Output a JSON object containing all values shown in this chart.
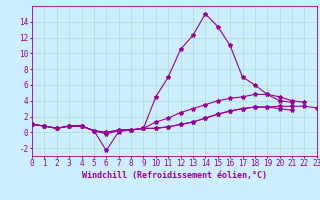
{
  "x": [
    0,
    1,
    2,
    3,
    4,
    5,
    6,
    7,
    8,
    9,
    10,
    11,
    12,
    13,
    14,
    15,
    16,
    17,
    18,
    19,
    20,
    21,
    22,
    23
  ],
  "line1": [
    1.0,
    0.8,
    0.5,
    0.8,
    0.8,
    0.2,
    -0.2,
    0.2,
    0.3,
    0.5,
    4.5,
    7.0,
    10.5,
    12.3,
    15.0,
    13.4,
    11.0,
    7.0,
    6.0,
    4.8,
    4.0,
    3.8,
    null,
    null
  ],
  "line2": [
    1.0,
    0.8,
    0.5,
    0.8,
    0.8,
    0.2,
    -2.3,
    0.1,
    0.3,
    0.5,
    1.3,
    1.8,
    2.5,
    3.0,
    3.5,
    4.0,
    4.3,
    4.5,
    4.8,
    4.8,
    4.5,
    4.0,
    3.8,
    null
  ],
  "line3": [
    1.0,
    0.8,
    0.5,
    0.8,
    0.8,
    0.2,
    0.0,
    0.3,
    0.3,
    0.5,
    0.5,
    0.7,
    1.0,
    1.3,
    1.8,
    2.3,
    2.7,
    3.0,
    3.2,
    3.2,
    3.3,
    3.3,
    3.3,
    3.1
  ],
  "line4": [
    1.0,
    0.8,
    0.5,
    0.8,
    0.8,
    0.2,
    0.0,
    0.3,
    0.3,
    0.5,
    0.5,
    0.7,
    1.0,
    1.3,
    1.8,
    2.3,
    2.7,
    3.0,
    3.2,
    3.2,
    3.0,
    2.8,
    null,
    null
  ],
  "color": "#990099",
  "bg_color": "#cceeff",
  "grid_color": "#aaddcc",
  "xlabel": "Windchill (Refroidissement éolien,°C)",
  "ylim": [
    -3,
    16
  ],
  "xlim": [
    0,
    23
  ],
  "yticks": [
    -2,
    0,
    2,
    4,
    6,
    8,
    10,
    12,
    14
  ],
  "xticks": [
    0,
    1,
    2,
    3,
    4,
    5,
    6,
    7,
    8,
    9,
    10,
    11,
    12,
    13,
    14,
    15,
    16,
    17,
    18,
    19,
    20,
    21,
    22,
    23
  ],
  "marker": "*",
  "markersize": 3,
  "linewidth": 0.8,
  "xlabel_fontsize": 6,
  "tick_fontsize": 5.5
}
